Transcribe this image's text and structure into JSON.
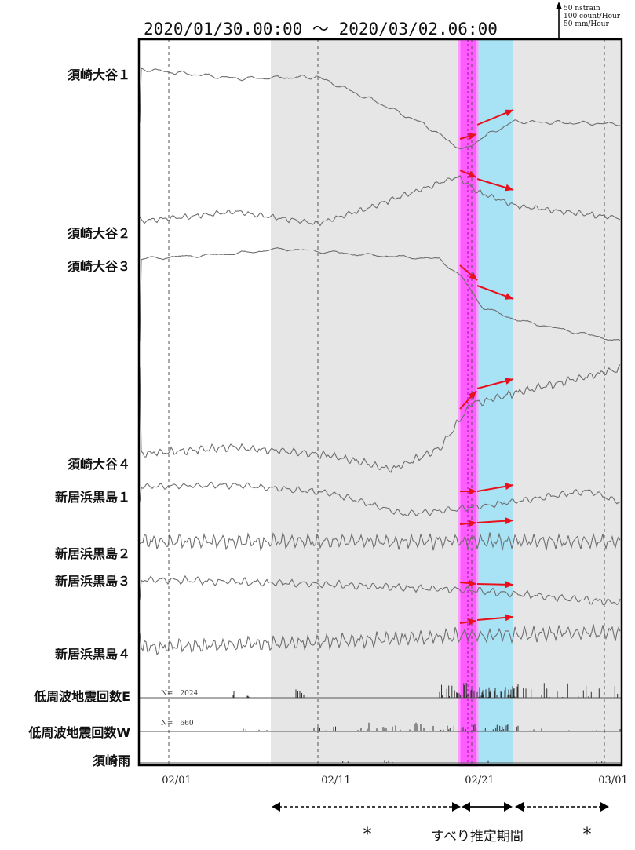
{
  "chart_data": {
    "type": "line",
    "title": "2020/01/30.00:00 〜 2020/03/02.06:00",
    "scale_legend": [
      "50 nstrain",
      "100 count/Hour",
      "50 mm/Hour"
    ],
    "x_ticks": [
      "02/01",
      "02/11",
      "02/21",
      "03/01"
    ],
    "shaded_periods": [
      {
        "start": "02/06",
        "end": "02/20",
        "color": "#e6e6e6"
      },
      {
        "start": "02/20",
        "end": "02/21",
        "color": "#ff5cff"
      },
      {
        "start": "02/21",
        "end": "02/23",
        "color": "#a8e2f5"
      },
      {
        "start": "02/23",
        "end": "03/02",
        "color": "#e6e6e6"
      }
    ],
    "series": [
      {
        "name": "須崎大谷１"
      },
      {
        "name": "須崎大谷２"
      },
      {
        "name": "須崎大谷３"
      },
      {
        "name": "須崎大谷４"
      },
      {
        "name": "新居浜黒島１"
      },
      {
        "name": "新居浜黒島２"
      },
      {
        "name": "新居浜黒島３"
      },
      {
        "name": "新居浜黒島４"
      },
      {
        "name": "低周波地震回数E",
        "count_label": "N=　2024"
      },
      {
        "name": "低周波地震回数W",
        "count_label": "N=　660"
      },
      {
        "name": "須崎雨"
      }
    ],
    "bottom_annotations": {
      "left_star": "*",
      "slip_period_label": "すべり推定期間",
      "right_star": "*"
    },
    "arrow_color": "#e8101a",
    "trace_color": "#6e6e6e"
  }
}
